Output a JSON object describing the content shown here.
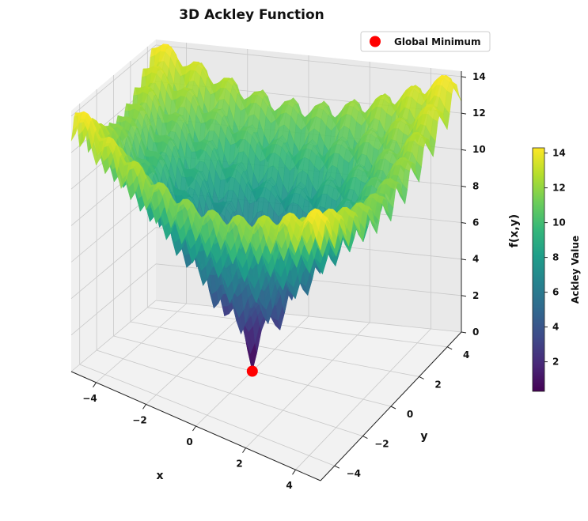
{
  "chart_data": {
    "type": "surface3d",
    "title": "3D Ackley Function",
    "function": "ackley",
    "xlabel": "x",
    "ylabel": "y",
    "zlabel": "f(x,y)",
    "xlim": [
      -5,
      5
    ],
    "ylim": [
      -5,
      5
    ],
    "zlim": [
      0,
      14.3
    ],
    "x_ticks": [
      -4,
      -2,
      0,
      2,
      4
    ],
    "y_ticks": [
      -4,
      -2,
      0,
      2,
      4
    ],
    "z_ticks": [
      0,
      2,
      4,
      6,
      8,
      10,
      12,
      14
    ],
    "x_tick_labels": [
      "−4",
      "−2",
      "0",
      "2",
      "4"
    ],
    "y_tick_labels": [
      "−4",
      "−2",
      "0",
      "2",
      "4"
    ],
    "z_tick_labels": [
      "0",
      "2",
      "4",
      "6",
      "8",
      "10",
      "12",
      "14"
    ],
    "grid": true,
    "colormap": "viridis",
    "colorbar": {
      "label": "Ackley Value",
      "min": 0.3,
      "max": 14.3,
      "ticks": [
        2,
        4,
        6,
        8,
        10,
        12,
        14
      ],
      "tick_labels": [
        "2",
        "4",
        "6",
        "8",
        "10",
        "12",
        "14"
      ]
    },
    "legend": {
      "placement": "top-right",
      "entries": [
        {
          "label": "Global Minimum",
          "marker": "circle",
          "color": "#ff0000"
        }
      ]
    },
    "global_minimum": {
      "x": 0,
      "y": 0,
      "z": 0
    }
  }
}
